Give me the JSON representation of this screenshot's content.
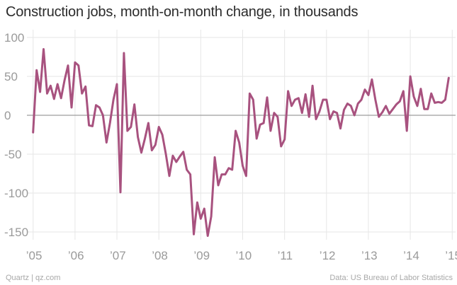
{
  "chart_data": {
    "type": "line",
    "title": "Construction jobs, month-on-month change, in thousands",
    "xlabel": "",
    "ylabel": "",
    "ylim": [
      -160,
      110
    ],
    "xlim": [
      2004.92,
      2015.08
    ],
    "grid": true,
    "legend": "none",
    "y_ticks": [
      100,
      50,
      0,
      -50,
      -100,
      -150
    ],
    "y_tick_labels": [
      "100",
      "50",
      "0",
      "-50",
      "-100",
      "-150"
    ],
    "x_ticks": [
      2005,
      2006,
      2007,
      2008,
      2009,
      2010,
      2011,
      2012,
      2013,
      2014,
      2015
    ],
    "x_tick_labels": [
      "’05",
      "’06",
      "’07",
      "’08",
      "’09",
      "’10",
      "’11",
      "’12",
      "’13",
      "’14",
      "’15"
    ],
    "series": [
      {
        "color": "#a8527f",
        "x_start": "2005-01",
        "frequency": "monthly",
        "values": [
          -22,
          58,
          30,
          85,
          28,
          38,
          21,
          40,
          22,
          45,
          64,
          10,
          68,
          64,
          28,
          37,
          -13,
          -14,
          13,
          10,
          0,
          -35,
          -10,
          20,
          40,
          -99,
          80,
          -20,
          -15,
          14,
          -28,
          -48,
          -30,
          -10,
          -45,
          -38,
          -15,
          -25,
          -50,
          -78,
          -52,
          -60,
          -53,
          -47,
          -70,
          -76,
          -153,
          -112,
          -133,
          -120,
          -155,
          -130,
          -54,
          -90,
          -76,
          -76,
          -68,
          -70,
          -20,
          -35,
          -65,
          -78,
          28,
          20,
          -30,
          -12,
          -10,
          23,
          -20,
          3,
          -2,
          -40,
          -31,
          31,
          12,
          20,
          22,
          3,
          27,
          -2,
          38,
          -5,
          5,
          20,
          20,
          -5,
          5,
          3,
          -17,
          7,
          15,
          12,
          0,
          15,
          20,
          33,
          26,
          46,
          20,
          -2,
          4,
          12,
          2,
          8,
          14,
          18,
          31,
          -20,
          50,
          24,
          12,
          34,
          8,
          8,
          28,
          16,
          17,
          16,
          20,
          48
        ]
      }
    ]
  },
  "footer": {
    "source_left": "Quartz | qz.com",
    "source_right": "Data: US Bureau of Labor Statistics"
  }
}
